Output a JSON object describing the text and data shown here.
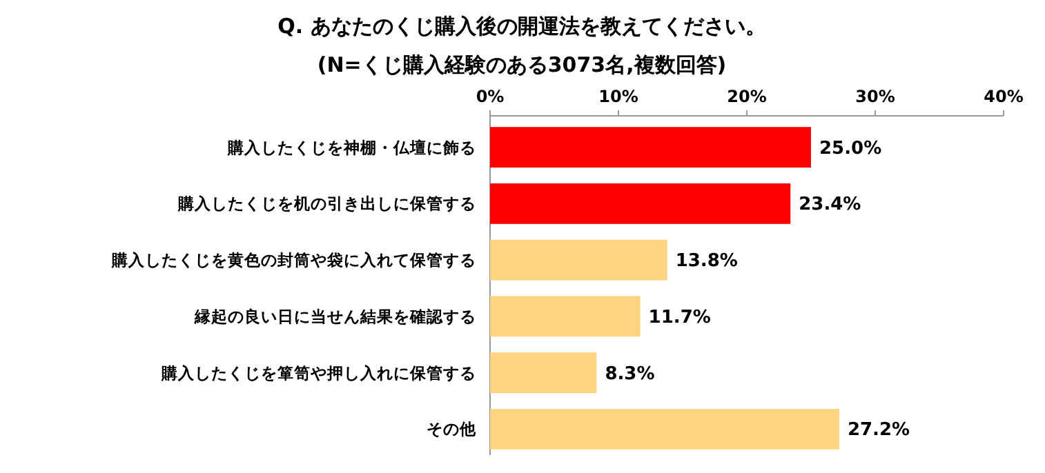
{
  "chart_data": {
    "type": "bar",
    "orientation": "horizontal",
    "title": "Q. あなたのくじ購入後の開運法を教えてください。",
    "subtitle": "(N=くじ購入経験のある3073名,複数回答)",
    "categories": [
      "購入したくじを神棚・仏壇に飾る",
      "購入したくじを机の引き出しに保管する",
      "購入したくじを黄色の封筒や袋に入れて保管する",
      "縁起の良い日に当せん結果を確認する",
      "購入したくじを箪笥や押し入れに保管する",
      "その他"
    ],
    "values": [
      25.0,
      23.4,
      13.8,
      11.7,
      8.3,
      27.2
    ],
    "colors": [
      "#ff0000",
      "#ff0000",
      "#fdd47f",
      "#fdd47f",
      "#fdd47f",
      "#fdd47f"
    ],
    "value_labels": [
      "25.0%",
      "23.4%",
      "13.8%",
      "11.7%",
      "8.3%",
      "27.2%"
    ],
    "xlim": [
      0,
      40
    ],
    "xticks": [
      {
        "value": 0,
        "label": "0%"
      },
      {
        "value": 10,
        "label": "10%"
      },
      {
        "value": 20,
        "label": "20%"
      },
      {
        "value": 30,
        "label": "30%"
      },
      {
        "value": 40,
        "label": "40%"
      }
    ]
  }
}
